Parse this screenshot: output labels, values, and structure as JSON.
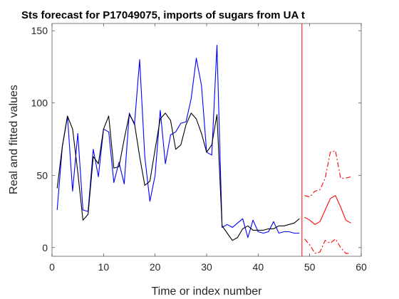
{
  "chart_data": {
    "type": "line",
    "title": "Sts forecast for P17049075, imports of sugars from UA t",
    "xlabel": "Time or index number",
    "ylabel": "Real and fitted values",
    "xlim": [
      0,
      60
    ],
    "ylim": [
      -6,
      155
    ],
    "xticks": [
      0,
      10,
      20,
      30,
      40,
      50,
      60
    ],
    "yticks": [
      0,
      50,
      100,
      150
    ],
    "grid": false,
    "legend": "none",
    "vline_x": 48.5,
    "series": [
      {
        "color": "#0000ff",
        "style": "solid",
        "x": [
          1,
          2,
          3,
          4,
          5,
          6,
          7,
          8,
          9,
          10,
          11,
          12,
          13,
          14,
          15,
          16,
          17,
          18,
          19,
          20,
          21,
          22,
          23,
          24,
          25,
          26,
          27,
          28,
          29,
          30,
          31,
          32,
          33,
          34,
          35,
          36,
          37,
          38,
          39,
          40,
          41,
          42,
          43,
          44,
          45,
          46,
          47,
          48
        ],
        "values": [
          26,
          70,
          91,
          39,
          79,
          26,
          25,
          68,
          49,
          82,
          80,
          45,
          59,
          44,
          93,
          85,
          130,
          63,
          32,
          50,
          95,
          58,
          78,
          80,
          86,
          87,
          103,
          131,
          112,
          66,
          64,
          140,
          14,
          16,
          14,
          17,
          20,
          7,
          19,
          11,
          10,
          11,
          18,
          10,
          11,
          11,
          10,
          10
        ]
      },
      {
        "color": "#000000",
        "style": "solid",
        "x": [
          1,
          2,
          3,
          4,
          5,
          6,
          7,
          8,
          9,
          10,
          11,
          12,
          13,
          14,
          15,
          16,
          17,
          18,
          19,
          20,
          21,
          22,
          23,
          24,
          25,
          26,
          27,
          28,
          29,
          30,
          31,
          32,
          33,
          34,
          35,
          36,
          37,
          38,
          39,
          40,
          41,
          42,
          43,
          44,
          45,
          46,
          47,
          48
        ],
        "values": [
          41,
          70,
          91,
          82,
          52,
          19,
          23,
          63,
          58,
          82,
          91,
          55,
          56,
          75,
          92,
          86,
          63,
          43,
          46,
          68,
          89,
          93,
          88,
          68,
          71,
          85,
          93,
          89,
          79,
          66,
          71,
          92,
          15,
          10,
          5,
          7,
          13,
          15,
          12,
          12,
          12,
          13,
          13,
          15,
          15,
          16,
          17,
          20
        ]
      },
      {
        "color": "#ff0000",
        "style": "solid",
        "x": [
          49,
          50,
          51,
          52,
          53,
          54,
          55,
          56,
          57,
          58
        ],
        "values": [
          21,
          19,
          16,
          18,
          26,
          34,
          36,
          28,
          19,
          17
        ]
      },
      {
        "color": "#ff0000",
        "style": "dashdot",
        "x": [
          49,
          50,
          51,
          52,
          53,
          54,
          55,
          56,
          57,
          58
        ],
        "values": [
          36,
          35,
          39,
          40,
          48,
          66,
          67,
          48,
          48,
          49
        ]
      },
      {
        "color": "#ff0000",
        "style": "dashdot",
        "x": [
          49,
          50,
          51,
          52,
          53,
          54,
          55,
          56,
          57,
          58
        ],
        "values": [
          6,
          2,
          -4,
          -3,
          5,
          3,
          6,
          0,
          -4,
          -4
        ]
      }
    ]
  }
}
